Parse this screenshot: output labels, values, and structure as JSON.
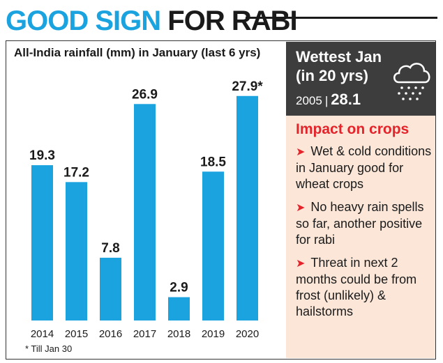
{
  "header": {
    "title_part1": "GOOD SIGN",
    "title_part2": "FOR RABI"
  },
  "colors": {
    "accent": "#1ba3e0",
    "bar": "#1ba3e0",
    "panel_dark": "#3d3d3d",
    "panel_light": "#fbe6d8",
    "impact_red": "#e3252b"
  },
  "chart_data": {
    "type": "bar",
    "title": "All-India rainfall (mm) in January (last 6 yrs)",
    "categories": [
      "2014",
      "2015",
      "2016",
      "2017",
      "2018",
      "2019",
      "2020"
    ],
    "values": [
      19.3,
      17.2,
      7.8,
      26.9,
      2.9,
      18.5,
      27.9
    ],
    "labels": [
      "19.3",
      "17.2",
      "7.8",
      "26.9",
      "2.9",
      "18.5",
      "27.9*"
    ],
    "xlabel": "",
    "ylabel": "",
    "ylim": [
      0,
      30
    ],
    "grid": false,
    "footnote": "* Till Jan 30"
  },
  "wettest": {
    "heading": "Wettest Jan (in 20 yrs)",
    "year": "2005",
    "separator": "|",
    "value": "28.1",
    "icon": "rain-cloud-icon"
  },
  "impact": {
    "title": "Impact on crops",
    "items": [
      "Wet & cold conditions in January good for wheat crops",
      "No heavy rain spells so far, another positive for rabi",
      "Threat in next 2 months could be from frost (unlikely) & hailstorms"
    ]
  }
}
